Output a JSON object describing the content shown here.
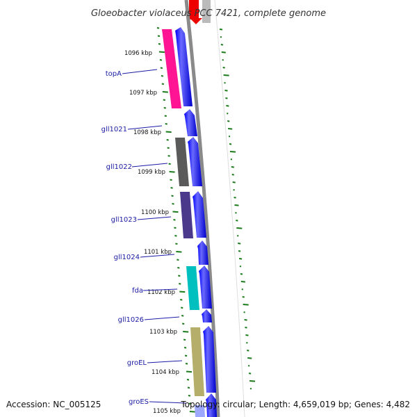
{
  "title": "Gloeobacter violaceus PCC 7421, complete genome",
  "footer": {
    "accession": "Accession: NC_005125",
    "topology": "Topology: circular; Length: 4,659,019 bp; Genes: 4,482"
  },
  "colors": {
    "backbone": "#8a8a8a",
    "cds_arrow": "#0000ee",
    "ticks": "#1a7a1a",
    "label_line": "#1a1aa6"
  },
  "kbp_labels": [
    "1096 kbp",
    "1097 kbp",
    "1098 kbp",
    "1099 kbp",
    "1100 kbp",
    "1101 kbp",
    "1102 kbp",
    "1103 kbp",
    "1104 kbp",
    "1105 kbp"
  ],
  "genes": [
    {
      "name": "topA",
      "color": "#ff1493"
    },
    {
      "name": "gll1021",
      "color": ""
    },
    {
      "name": "gll1022",
      "color": "#555555"
    },
    {
      "name": "gll1023",
      "color": "#4b3a8c"
    },
    {
      "name": "gll1024",
      "color": ""
    },
    {
      "name": "fda",
      "color": "#00bfbf"
    },
    {
      "name": "gll1026",
      "color": ""
    },
    {
      "name": "groEL",
      "color": "#b5ad6a"
    },
    {
      "name": "groES",
      "color": ""
    }
  ]
}
